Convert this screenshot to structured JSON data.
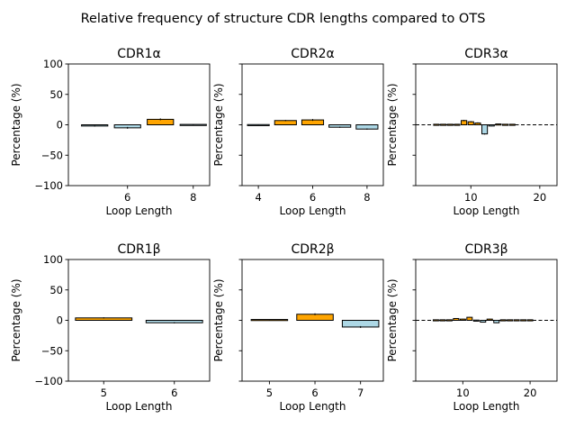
{
  "figure": {
    "suptitle": "Relative frequency of structure CDR lengths compared to OTS",
    "colors": {
      "positive": "#ffa500",
      "negative": "#add8e6",
      "edge": "#000000"
    }
  },
  "chart_data": [
    {
      "type": "bar",
      "title": "CDR1α",
      "xlabel": "Loop Length",
      "ylabel": "Percentage (%)",
      "ylim": [
        -100,
        100
      ],
      "yticks": [
        -100,
        -50,
        0,
        50,
        100
      ],
      "show_yticklabels": true,
      "xlim": [
        4.2,
        8.5
      ],
      "xticks": [
        6,
        8
      ],
      "x": [
        5,
        6,
        7,
        8
      ],
      "values": [
        -2,
        -5,
        9,
        -0.5
      ],
      "errors": [
        1,
        1.5,
        1.5,
        0.3
      ],
      "bar_width": 0.8,
      "reference_line": false
    },
    {
      "type": "bar",
      "title": "CDR2α",
      "xlabel": "Loop Length",
      "ylabel": "Percentage (%)",
      "ylim": [
        -100,
        100
      ],
      "yticks": [
        -100,
        -50,
        0,
        50,
        100
      ],
      "show_yticklabels": false,
      "xlim": [
        3.4,
        8.6
      ],
      "xticks": [
        4,
        6,
        8
      ],
      "x": [
        4,
        5,
        6,
        7,
        8
      ],
      "values": [
        -1,
        7,
        8,
        -4,
        -7
      ],
      "errors": [
        0.5,
        1,
        1.5,
        1,
        1
      ],
      "bar_width": 0.8,
      "reference_line": false
    },
    {
      "type": "bar",
      "title": "CDR3α",
      "xlabel": "Loop Length",
      "ylabel": "Percentage (%)",
      "ylim": [
        -100,
        100
      ],
      "yticks": [
        -100,
        -50,
        0,
        50,
        100
      ],
      "show_yticklabels": false,
      "xlim": [
        2,
        22.5
      ],
      "xticks": [
        10,
        20
      ],
      "x": [
        5,
        6,
        7,
        8,
        9,
        10,
        11,
        12,
        13,
        14,
        15,
        16
      ],
      "values": [
        0,
        0,
        0,
        0,
        7,
        5,
        3,
        -15,
        -2,
        1,
        0,
        0
      ],
      "errors": [
        0,
        0,
        0,
        0,
        1,
        1,
        1,
        1,
        0.5,
        0.5,
        0,
        0
      ],
      "bar_width": 0.8,
      "reference_line": true
    },
    {
      "type": "bar",
      "title": "CDR1β",
      "xlabel": "Loop Length",
      "ylabel": "Percentage (%)",
      "ylim": [
        -100,
        100
      ],
      "yticks": [
        -100,
        -50,
        0,
        50,
        100
      ],
      "show_yticklabels": true,
      "xlim": [
        4.5,
        6.5
      ],
      "xticks": [
        5,
        6
      ],
      "x": [
        5,
        6
      ],
      "values": [
        4,
        -4
      ],
      "errors": [
        1,
        1
      ],
      "bar_width": 0.8,
      "reference_line": false
    },
    {
      "type": "bar",
      "title": "CDR2β",
      "xlabel": "Loop Length",
      "ylabel": "Percentage (%)",
      "ylim": [
        -100,
        100
      ],
      "yticks": [
        -100,
        -50,
        0,
        50,
        100
      ],
      "show_yticklabels": false,
      "xlim": [
        4.4,
        7.5
      ],
      "xticks": [
        5,
        6,
        7
      ],
      "x": [
        5,
        6,
        7
      ],
      "values": [
        1,
        10,
        -11
      ],
      "errors": [
        0.5,
        1.5,
        1.5
      ],
      "bar_width": 0.8,
      "reference_line": false
    },
    {
      "type": "bar",
      "title": "CDR3β",
      "xlabel": "Loop Length",
      "ylabel": "Percentage (%)",
      "ylim": [
        -100,
        100
      ],
      "yticks": [
        -100,
        -50,
        0,
        50,
        100
      ],
      "show_yticklabels": false,
      "xlim": [
        3,
        24
      ],
      "xticks": [
        10,
        20
      ],
      "x": [
        6,
        7,
        8,
        9,
        10,
        11,
        12,
        13,
        14,
        15,
        16,
        17,
        18,
        19,
        20
      ],
      "values": [
        0,
        0,
        0,
        3,
        2,
        5,
        -1,
        -3,
        2,
        -4,
        0,
        0,
        0,
        0,
        0
      ],
      "errors": [
        0,
        0,
        0,
        0.5,
        0.5,
        0.5,
        0.5,
        0.5,
        0.5,
        0.5,
        0,
        0,
        0,
        0,
        0
      ],
      "bar_width": 0.8,
      "reference_line": true
    }
  ]
}
